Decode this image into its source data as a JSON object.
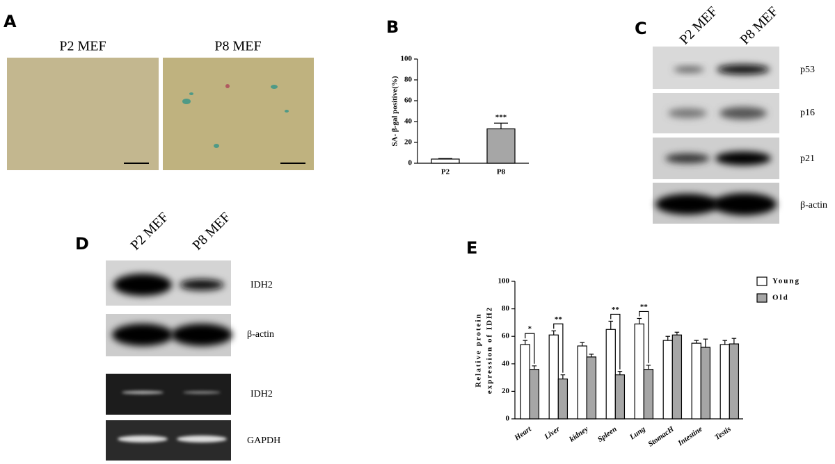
{
  "panel_labels": [
    "A",
    "B",
    "C",
    "D",
    "E"
  ],
  "panel_a": {
    "images": [
      "P2 MEF",
      "P8 MEF"
    ]
  },
  "panel_c": {
    "lanes": [
      "P2 MEF",
      "P8 MEF"
    ],
    "bands": [
      "p53",
      "p16",
      "p21",
      "β-actin"
    ]
  },
  "panel_d": {
    "lanes": [
      "P2 MEF",
      "P8 MEF"
    ],
    "bands": [
      "IDH2",
      "β-actin",
      "IDH2",
      "GAPDH"
    ]
  },
  "chart_data": [
    {
      "type": "bar",
      "ylabel": "SA- β-gal positive(%)",
      "categories": [
        "P2",
        "P8"
      ],
      "values": [
        4,
        33
      ],
      "errors": [
        0.5,
        5.5
      ],
      "colors": [
        "#ffffff",
        "#a6a6a6"
      ],
      "significance": [
        null,
        "***"
      ],
      "ylim": [
        0,
        100
      ],
      "yticks": [
        0,
        20,
        40,
        60,
        80,
        100
      ]
    },
    {
      "type": "bar",
      "ylabel": [
        "Relative protein",
        "expression of IDH2"
      ],
      "categories": [
        "Heart",
        "Liver",
        "kidney",
        "Spleen",
        "Lung",
        "StomacH",
        "Intestine",
        "Testis"
      ],
      "series": [
        {
          "name": "Young",
          "color": "#ffffff",
          "values": [
            54,
            61,
            53,
            65,
            69,
            57,
            55,
            54
          ],
          "errors": [
            3,
            3,
            2.5,
            6,
            4,
            3,
            2,
            3
          ]
        },
        {
          "name": "Old",
          "color": "#a6a6a6",
          "values": [
            36,
            29,
            45,
            32,
            36,
            61,
            52,
            54.5
          ],
          "errors": [
            2.5,
            3,
            2,
            2.5,
            3,
            2,
            6,
            4
          ]
        }
      ],
      "significance": [
        "*",
        "**",
        null,
        "**",
        "**",
        null,
        null,
        null
      ],
      "ylim": [
        0,
        100
      ],
      "yticks": [
        0,
        20,
        40,
        60,
        80,
        100
      ],
      "legend": "upper right"
    }
  ]
}
